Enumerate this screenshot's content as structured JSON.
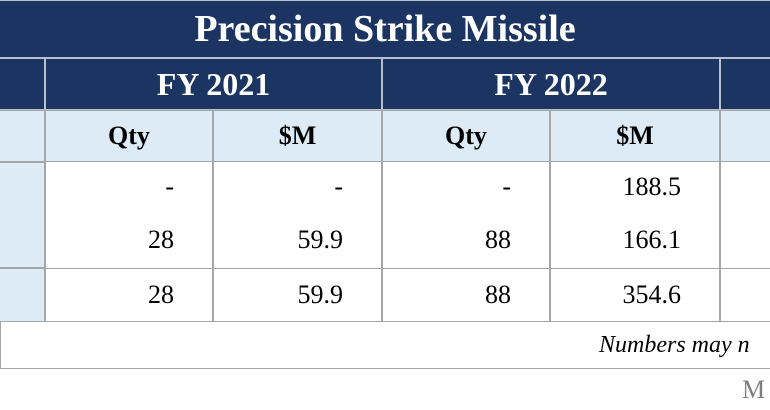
{
  "title": "Precision Strike Missile",
  "years": [
    "FY 2021",
    "FY 2022"
  ],
  "subheaders": [
    "Qty",
    "$M",
    "Qty",
    "$M"
  ],
  "table": {
    "rows": [
      [
        "-",
        "-",
        "-",
        "188.5"
      ],
      [
        "28",
        "59.9",
        "88",
        "166.1"
      ]
    ],
    "total": [
      "28",
      "59.9",
      "88",
      "354.6"
    ]
  },
  "note": "Numbers may n",
  "footer": "M"
}
